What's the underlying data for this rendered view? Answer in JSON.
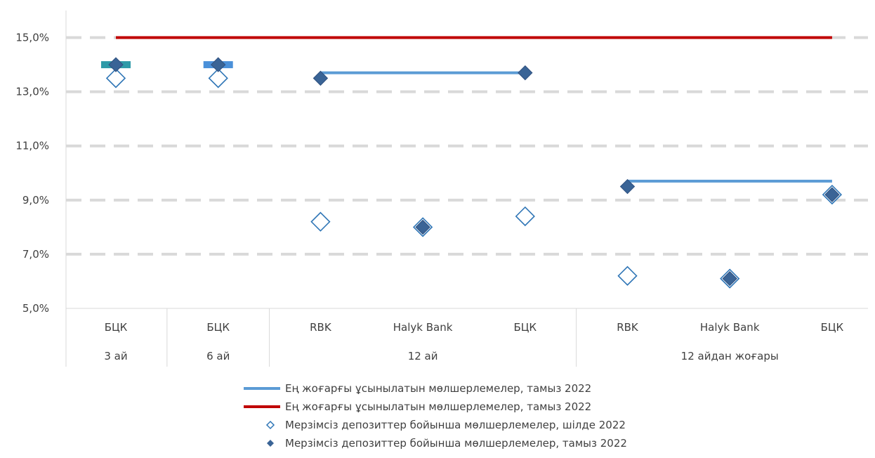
{
  "chart_data": {
    "type": "scatter",
    "y_format": "percent_1dp",
    "ylim": [
      5,
      16
    ],
    "ytick_values": [
      5,
      7,
      9,
      11,
      13,
      15
    ],
    "ytick_labels": [
      "5,0%",
      "7,0%",
      "9,0%",
      "11,0%",
      "13,0%",
      "15,0%"
    ],
    "grid": "horizontal dashed",
    "categories": [
      "БЦК",
      "БЦК",
      "RBK",
      "Halyk Bank",
      "БЦК",
      "RBK",
      "Halyk Bank",
      "БЦК"
    ],
    "groups": [
      {
        "label": "3 ай",
        "start": 0,
        "end": 0
      },
      {
        "label": "6 ай",
        "start": 1,
        "end": 1
      },
      {
        "label": "12 ай",
        "start": 2,
        "end": 4
      },
      {
        "label": "12 айдан жоғары",
        "start": 5,
        "end": 7
      }
    ],
    "series": [
      {
        "name": "Ең жоғарғы ұсынылатын мөлшерлемелер, тамыз 2022",
        "kind": "segments",
        "color": "#5B9BD5",
        "segments": [
          {
            "from": 2,
            "to": 4,
            "value": 13.7
          },
          {
            "from": 5,
            "to": 7,
            "value": 9.7
          }
        ],
        "markers": [
          {
            "index": 0,
            "value": 14.0,
            "color": "#2E9AA8"
          },
          {
            "index": 1,
            "value": 14.0,
            "color": "#4A90D9"
          }
        ]
      },
      {
        "name": "Ең жоғарғы ұсынылатын мөлшерлемелер, тамыз 2022",
        "kind": "segments",
        "color": "#C00000",
        "segments": [
          {
            "from": 0,
            "to": 7,
            "value": 15.0
          }
        ]
      },
      {
        "name": "Мерзімсіз депозиттер бойынша мөлшерлемелер, шілде 2022",
        "kind": "points",
        "marker": "diamond-open",
        "color": "#2E75B6",
        "values": [
          13.5,
          13.5,
          8.2,
          8.0,
          8.4,
          6.2,
          6.1,
          9.2
        ]
      },
      {
        "name": "Мерзімсіз депозиттер бойынша мөлшерлемелер, тамыз 2022",
        "kind": "points",
        "marker": "diamond-filled",
        "color": "#3A6496",
        "values": [
          14.0,
          14.0,
          13.5,
          8.0,
          13.7,
          9.5,
          6.1,
          9.2
        ]
      }
    ]
  }
}
